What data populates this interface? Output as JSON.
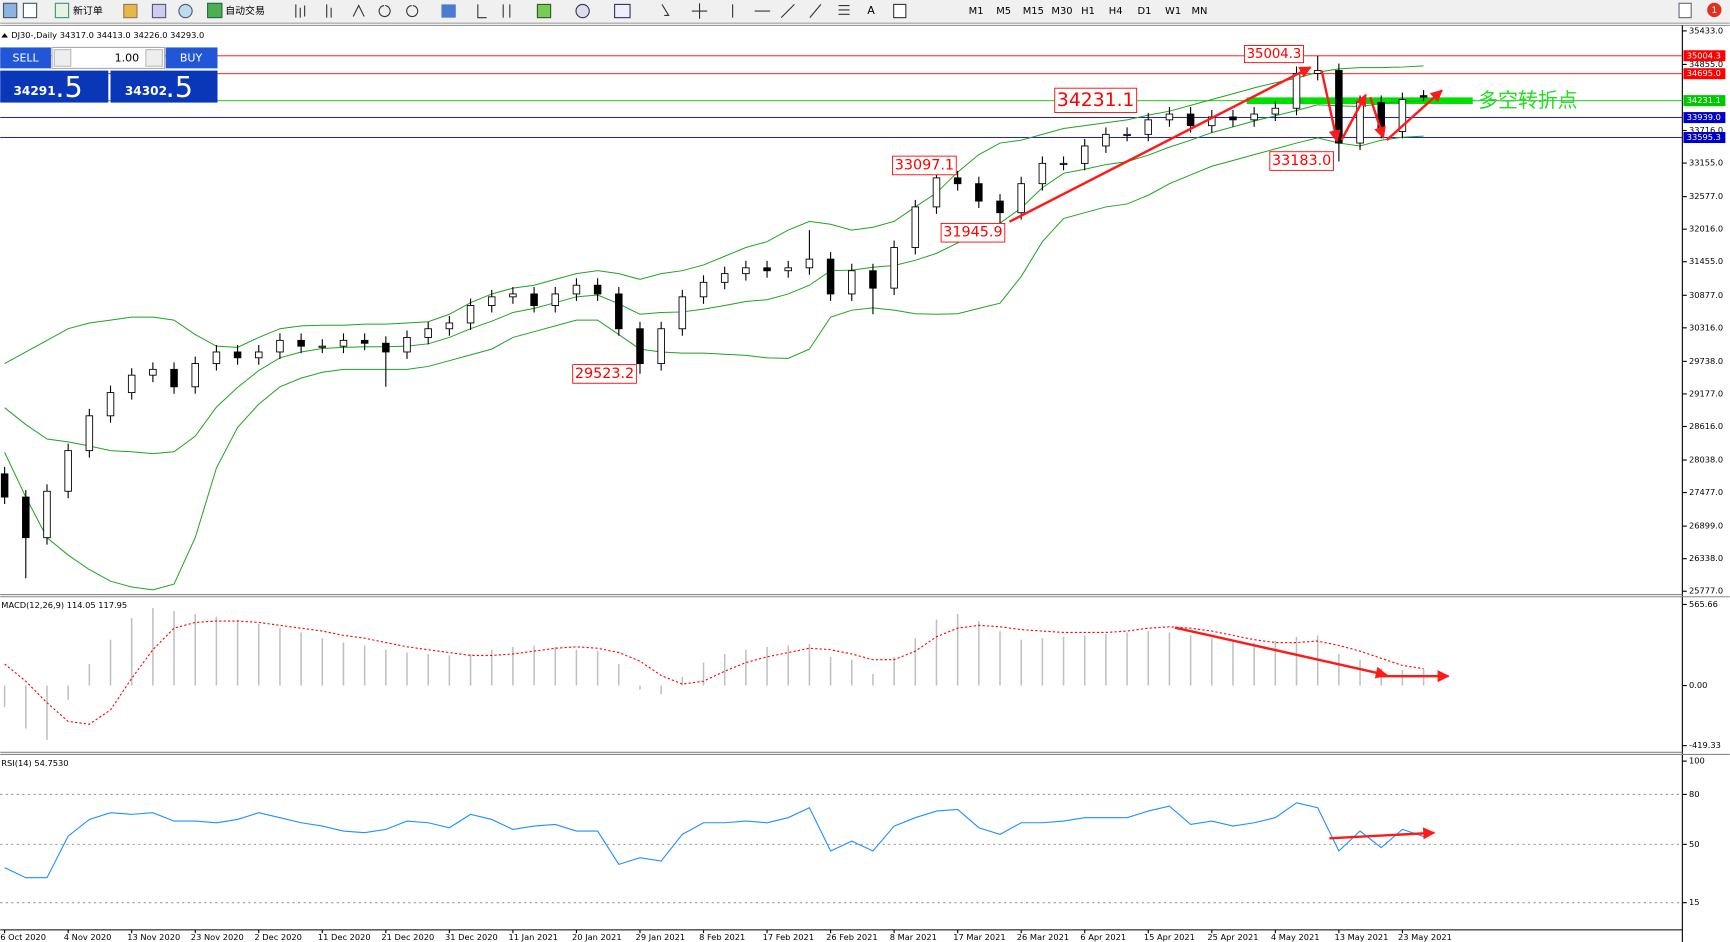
{
  "toolbar": {
    "new_order": "新订单",
    "auto_trading": "自动交易",
    "timeframes": [
      "M1",
      "M5",
      "M15",
      "M30",
      "H1",
      "H4",
      "D1",
      "W1",
      "MN"
    ],
    "notification": "1"
  },
  "trade_panel": {
    "sell": "SELL",
    "buy": "BUY",
    "volume": "1.00",
    "sell_main": "34291",
    "sell_frac": ".5",
    "buy_main": "34302",
    "buy_frac": ".5"
  },
  "chart_data": [
    {
      "type": "candlestick",
      "title": "DJ30-,Daily 34317.0 34413.0 34226.0 34293.0",
      "open": [
        27800,
        27400,
        26700,
        27500,
        28200,
        28800,
        29200,
        29500,
        29600,
        29300,
        29700,
        29900,
        29800,
        29900,
        30100,
        30000,
        30000,
        30100,
        30050,
        29900,
        30150,
        30300,
        30400,
        30700,
        30850,
        30900,
        30700,
        30900,
        31050,
        30900,
        30300,
        29700,
        30300,
        30850,
        31100,
        31250,
        31350,
        31300,
        31350,
        31500,
        30900,
        31300,
        31000,
        31700,
        32400,
        32900,
        32800,
        32500,
        32300,
        32800,
        33150,
        33150,
        33450,
        33650,
        33650,
        33900,
        34000,
        33800,
        33950,
        33900,
        34000,
        34100,
        34700,
        34750,
        33500,
        34200,
        33700,
        34317
      ],
      "high": [
        27920,
        27520,
        27620,
        28320,
        28920,
        29320,
        29620,
        29720,
        29720,
        29820,
        30020,
        30020,
        30020,
        30220,
        30220,
        30120,
        30220,
        30220,
        30170,
        30270,
        30420,
        30520,
        30820,
        30970,
        31020,
        31020,
        31020,
        31170,
        31170,
        31020,
        30420,
        30420,
        30970,
        31220,
        31370,
        31470,
        31470,
        31470,
        32000,
        31620,
        31420,
        31420,
        31820,
        32520,
        33097.1,
        33020,
        32920,
        32620,
        32920,
        33270,
        33270,
        33570,
        33770,
        33770,
        34020,
        34120,
        34120,
        34070,
        34070,
        34120,
        34220,
        34820,
        35004.3,
        34870,
        34320,
        34320,
        34370,
        34413
      ],
      "low": [
        27280,
        26000,
        26580,
        27380,
        28080,
        28680,
        29080,
        29380,
        29180,
        29180,
        29580,
        29680,
        29680,
        29780,
        29880,
        29880,
        29880,
        29930,
        29300,
        29780,
        30030,
        30180,
        30280,
        30580,
        30730,
        30580,
        30580,
        30780,
        30780,
        30180,
        29523.2,
        29580,
        30180,
        30730,
        30980,
        31130,
        31180,
        31180,
        31230,
        30780,
        30780,
        30550,
        30880,
        31580,
        32280,
        32680,
        32380,
        31945.9,
        32180,
        32680,
        33030,
        33030,
        33330,
        33530,
        33530,
        33780,
        33680,
        33680,
        33780,
        33780,
        33880,
        33980,
        34580,
        33183,
        33380,
        33580,
        33580,
        34226
      ],
      "close": [
        27400,
        26700,
        27500,
        28200,
        28800,
        29200,
        29500,
        29600,
        29300,
        29700,
        29900,
        29800,
        29900,
        30100,
        30000,
        30000,
        30100,
        30050,
        29900,
        30150,
        30300,
        30400,
        30700,
        30850,
        30900,
        30700,
        30900,
        31050,
        30900,
        30300,
        29700,
        30300,
        30850,
        31100,
        31250,
        31350,
        31300,
        31350,
        31500,
        30900,
        31300,
        31000,
        31700,
        32400,
        32900,
        32800,
        32500,
        32300,
        32800,
        33150,
        33150,
        33450,
        33650,
        33650,
        33900,
        34000,
        33800,
        33950,
        33900,
        34000,
        34100,
        34700,
        34750,
        33500,
        34200,
        33700,
        34250,
        34293
      ],
      "overlays": [
        {
          "color": "#1fa31f",
          "values": [
            29700,
            29900,
            30100,
            30300,
            30400,
            30450,
            30500,
            30500,
            30450,
            30200,
            30000,
            29980,
            30150,
            30300,
            30350,
            30360,
            30360,
            30380,
            30380,
            30400,
            30420,
            30550,
            30750,
            30900,
            31000,
            31050,
            31150,
            31250,
            31300,
            31250,
            31150,
            31250,
            31300,
            31400,
            31550,
            31700,
            31800,
            32000,
            32150,
            32100,
            32000,
            32050,
            32150,
            32400,
            32640,
            33000,
            33300,
            33500,
            33550,
            33650,
            33750,
            33800,
            33850,
            33900,
            33980,
            34050,
            34150,
            34250,
            34350,
            34450,
            34540,
            34620,
            34720,
            34780,
            34800,
            34800,
            34810,
            34830
          ]
        },
        {
          "color": "#1fa31f",
          "values": [
            28940,
            28650,
            28400,
            28350,
            28280,
            28200,
            28180,
            28150,
            28180,
            28450,
            28950,
            29290,
            29580,
            29800,
            29900,
            29960,
            29980,
            29990,
            29990,
            30000,
            30040,
            30150,
            30300,
            30430,
            30580,
            30650,
            30750,
            30850,
            30880,
            30730,
            30550,
            30580,
            30590,
            30640,
            30700,
            30770,
            30800,
            30900,
            31050,
            31300,
            31310,
            31360,
            31390,
            31480,
            31600,
            31780,
            31980,
            32120,
            32380,
            32730,
            32980,
            33050,
            33130,
            33180,
            33290,
            33430,
            33550,
            33680,
            33780,
            33880,
            33970,
            34060,
            34160,
            34140,
            34130,
            34180,
            34210,
            34230
          ]
        },
        {
          "color": "#1fa31f",
          "values": [
            28170,
            27400,
            26700,
            26400,
            26150,
            25950,
            25850,
            25800,
            25900,
            26700,
            27900,
            28600,
            29000,
            29300,
            29450,
            29550,
            29600,
            29600,
            29600,
            29600,
            29650,
            29750,
            29850,
            29950,
            30150,
            30250,
            30350,
            30450,
            30450,
            30200,
            29950,
            29900,
            29880,
            29880,
            29860,
            29840,
            29800,
            29790,
            29950,
            30500,
            30620,
            30660,
            30620,
            30560,
            30550,
            30560,
            30650,
            30740,
            31200,
            31800,
            32200,
            32300,
            32400,
            32450,
            32600,
            32800,
            32950,
            33100,
            33200,
            33300,
            33400,
            33500,
            33590,
            33500,
            33450,
            33550,
            33600,
            33620
          ]
        }
      ],
      "levels": [
        {
          "value": 35004.3,
          "color": "#ff0000"
        },
        {
          "value": 34695,
          "label": "34695.0",
          "color": "#ff0000"
        },
        {
          "value": 34231.1,
          "color": "#00c800"
        },
        {
          "value": 33939,
          "label": "33939.0",
          "color": "#0000c8"
        },
        {
          "value": 33595.3,
          "color": "#0000c8"
        }
      ],
      "annotations": [
        "35004.3",
        "34231.1",
        "33097.1",
        "31945.9",
        "29523.2",
        "33183.0"
      ],
      "note": "多空转折点",
      "ylim": [
        25777,
        35433
      ],
      "yticks": [
        {
          "value": 35433,
          "label": "35433.0"
        },
        {
          "value": 34855,
          "label": "34855.0"
        },
        {
          "value": 33716,
          "label": "33716.0"
        },
        {
          "value": 33155,
          "label": "33155.0"
        },
        {
          "value": 32577,
          "label": "32577.0"
        },
        {
          "value": 32016,
          "label": "32016.0"
        },
        {
          "value": 31455,
          "label": "31455.0"
        },
        {
          "value": 30877,
          "label": "30877.0"
        },
        {
          "value": 30316,
          "label": "30316.0"
        },
        {
          "value": 29738,
          "label": "29738.0"
        },
        {
          "value": 29177,
          "label": "29177.0"
        },
        {
          "value": 28616,
          "label": "28616.0"
        },
        {
          "value": 28038,
          "label": "28038.0"
        },
        {
          "value": 27477,
          "label": "27477.0"
        },
        {
          "value": 26899,
          "label": "26899.0"
        },
        {
          "value": 26338,
          "label": "26338.0"
        },
        {
          "value": 25777,
          "label": "25777.0"
        }
      ]
    },
    {
      "type": "macd",
      "title": "MACD(12,26,9) 114.05 117.95",
      "series": [
        {
          "color": "#c0c0c0",
          "style": "histogram",
          "values": [
            -150,
            -300,
            -380,
            -100,
            150,
            320,
            470,
            540,
            520,
            500,
            480,
            460,
            430,
            400,
            370,
            330,
            300,
            280,
            250,
            230,
            220,
            210,
            220,
            250,
            270,
            280,
            270,
            250,
            240,
            150,
            -30,
            -60,
            60,
            160,
            220,
            250,
            270,
            280,
            290,
            200,
            180,
            80,
            200,
            330,
            460,
            500,
            450,
            380,
            320,
            330,
            340,
            350,
            360,
            370,
            380,
            370,
            350,
            330,
            310,
            300,
            310,
            340,
            350,
            220,
            180,
            120,
            110,
            114.05
          ]
        },
        {
          "color": "#ff0000",
          "style": "dotted",
          "values": [
            150,
            30,
            -120,
            -250,
            -270,
            -170,
            50,
            250,
            400,
            440,
            450,
            450,
            440,
            420,
            400,
            380,
            350,
            330,
            300,
            270,
            250,
            230,
            210,
            210,
            220,
            240,
            260,
            270,
            260,
            230,
            170,
            70,
            10,
            30,
            100,
            160,
            200,
            230,
            260,
            250,
            220,
            180,
            180,
            240,
            340,
            400,
            420,
            410,
            390,
            380,
            370,
            370,
            370,
            380,
            400,
            410,
            400,
            380,
            350,
            320,
            300,
            300,
            310,
            280,
            240,
            190,
            140,
            117.95
          ]
        }
      ],
      "ylim": [
        -419.33,
        565.66
      ],
      "yticks": [
        565.66,
        {
          "value": 0,
          "label": "0.00"
        },
        -419.33
      ]
    },
    {
      "type": "line",
      "title": "RSI(14) 54.7530",
      "categories": [
        "6 Oct 2020",
        null,
        null,
        "4 Nov 2020",
        null,
        null,
        "13 Nov 2020",
        null,
        null,
        "23 Nov 2020",
        null,
        null,
        "2 Dec 2020",
        null,
        null,
        "11 Dec 2020",
        null,
        null,
        "21 Dec 2020",
        null,
        null,
        "31 Dec 2020",
        null,
        null,
        "11 Jan 2021",
        null,
        null,
        "20 Jan 2021",
        null,
        null,
        "29 Jan 2021",
        null,
        null,
        "8 Feb 2021",
        null,
        null,
        "17 Feb 2021",
        null,
        null,
        "26 Feb 2021",
        null,
        null,
        "8 Mar 2021",
        null,
        null,
        "17 Mar 2021",
        null,
        null,
        "26 Mar 2021",
        null,
        null,
        "6 Apr 2021",
        null,
        null,
        "15 Apr 2021",
        null,
        null,
        "25 Apr 2021",
        null,
        null,
        "4 May 2021",
        null,
        null,
        "13 May 2021",
        null,
        null,
        "23 May 2021",
        null
      ],
      "series": [
        {
          "color": "#1e90ff",
          "values": [
            36,
            30,
            30,
            55,
            65,
            69,
            68,
            69,
            64,
            64,
            63,
            65,
            69,
            66,
            63,
            61,
            58,
            57,
            59,
            64,
            63,
            60,
            68,
            65,
            59,
            61,
            62,
            58,
            58,
            38,
            42,
            40,
            56,
            63,
            63,
            64,
            63,
            66,
            72,
            46,
            52,
            46,
            61,
            66,
            70,
            71,
            60,
            56,
            63,
            63,
            64,
            66,
            66,
            66,
            70,
            73,
            62,
            64,
            61,
            63,
            66,
            75,
            72,
            46,
            58,
            48,
            59,
            54.753
          ]
        }
      ],
      "ylim": [
        0,
        100
      ],
      "yticks": [
        100,
        80,
        50,
        15
      ]
    }
  ]
}
